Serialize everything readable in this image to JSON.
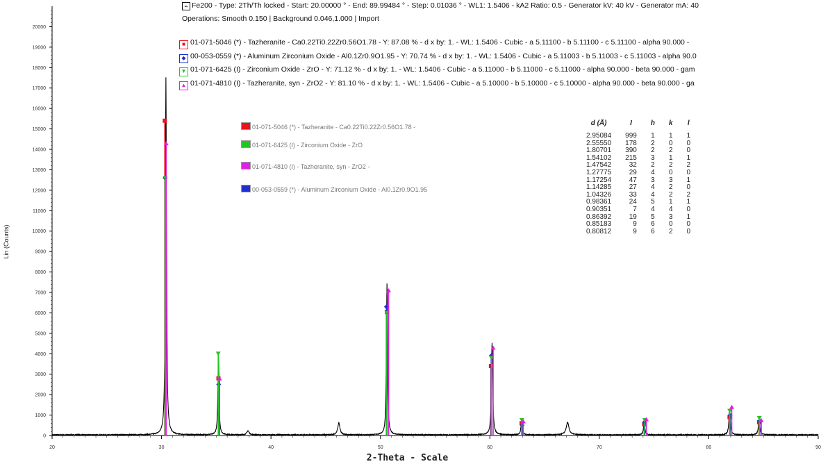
{
  "header": {
    "scan_icon": "scan-icon",
    "scan_line": "Fe200 - Type: 2Th/Th locked - Start: 20.00000 ° - End: 89.99484 ° - Step: 0.01036 ° - WL1: 1.5406 - kA2 Ratio: 0.5 - Generator kV: 40 kV - Generator mA: 40",
    "operations_line": "Operations: Smooth 0.150 | Background 0.046,1.000 | Import"
  },
  "phases": [
    {
      "symbol": "■",
      "color": "#e8141e",
      "text": "01-071-5046 (*) - Tazheranite - Ca0.22Ti0.22Zr0.56O1.78 - Y: 87.08 % - d x by: 1. - WL: 1.5406 - Cubic - a 5.11100 - b 5.11100 - c 5.11100 - alpha 90.000 -"
    },
    {
      "symbol": "◆",
      "color": "#2030d0",
      "text": "00-053-0559 (*) - Aluminum Zirconium Oxide - Al0.1Zr0.9O1.95 - Y: 70.74 % - d x by: 1. - WL: 1.5406 - Cubic - a 5.11003 - b 5.11003 - c 5.11003 - alpha 90.0"
    },
    {
      "symbol": "▼",
      "color": "#22c522",
      "text": "01-071-6425 (I) - Zirconium Oxide - ZrO - Y: 71.12 % - d x by: 1. - WL: 1.5406 - Cubic - a 5.11000 - b 5.11000 - c 5.11000 - alpha 90.000 - beta 90.000 - gam"
    },
    {
      "symbol": "▲",
      "color": "#e020e0",
      "text": "01-071-4810 (I) - Tazheranite, syn - ZrO2 - Y: 81.10 % - d x by: 1. - WL: 1.5406 - Cubic - a 5.10000 - b 5.10000 - c 5.10000 - alpha 90.000 - beta 90.000 - ga"
    }
  ],
  "legend": [
    {
      "color": "#e8141e",
      "text": "01-071-5046 (*) - Tazheranite - Ca0.22Ti0.22Zr0.56O1.78 -"
    },
    {
      "color": "#22c522",
      "text": "01-071-6425 (I) - Zirconium Oxide - ZrO"
    },
    {
      "color": "#e020e0",
      "text": "01-071-4810 (I) - Tazheranite, syn - ZrO2 -"
    },
    {
      "color": "#2030d0",
      "text": "00-053-0559 (*) - Aluminum Zirconium Oxide - Al0.1Zr0.9O1.95"
    }
  ],
  "dtable": {
    "headers": [
      "d (Å)",
      "I",
      "h",
      "k",
      "l"
    ],
    "rows": [
      [
        "2.95084",
        "999",
        "1",
        "1",
        "1"
      ],
      [
        "2.55550",
        "178",
        "2",
        "0",
        "0"
      ],
      [
        "1.80701",
        "390",
        "2",
        "2",
        "0"
      ],
      [
        "1.54102",
        "215",
        "3",
        "1",
        "1"
      ],
      [
        "1.47542",
        "32",
        "2",
        "2",
        "2"
      ],
      [
        "1.27775",
        "29",
        "4",
        "0",
        "0"
      ],
      [
        "1.17254",
        "47",
        "3",
        "3",
        "1"
      ],
      [
        "1.14285",
        "27",
        "4",
        "2",
        "0"
      ],
      [
        "1.04326",
        "33",
        "4",
        "2",
        "2"
      ],
      [
        "0.98361",
        "24",
        "5",
        "1",
        "1"
      ],
      [
        "0.90351",
        "7",
        "4",
        "4",
        "0"
      ],
      [
        "0.86392",
        "19",
        "5",
        "3",
        "1"
      ],
      [
        "0.85183",
        "9",
        "6",
        "0",
        "0"
      ],
      [
        "0.80812",
        "9",
        "6",
        "2",
        "0"
      ]
    ]
  },
  "chart_data": {
    "type": "line",
    "xlabel": "2-Theta - Scale",
    "ylabel": "Lin (Counts)",
    "xlim": [
      20,
      90
    ],
    "ylim": [
      0,
      21000
    ],
    "xticks": [
      20,
      30,
      40,
      50,
      60,
      70,
      80,
      90
    ],
    "yticks": [
      0,
      1000,
      2000,
      3000,
      4000,
      5000,
      6000,
      7000,
      8000,
      9000,
      10000,
      11000,
      12000,
      13000,
      14000,
      15000,
      16000,
      17000,
      18000,
      19000,
      20000
    ],
    "peaks": [
      {
        "x": 30.4,
        "y": 17500,
        "w": 0.06
      },
      {
        "x": 35.2,
        "y": 3900,
        "w": 0.06
      },
      {
        "x": 37.9,
        "y": 200,
        "w": 0.12
      },
      {
        "x": 46.2,
        "y": 580,
        "w": 0.12
      },
      {
        "x": 50.6,
        "y": 7400,
        "w": 0.06
      },
      {
        "x": 60.2,
        "y": 4500,
        "w": 0.07
      },
      {
        "x": 62.9,
        "y": 700,
        "w": 0.07
      },
      {
        "x": 67.1,
        "y": 600,
        "w": 0.15
      },
      {
        "x": 74.1,
        "y": 650,
        "w": 0.07
      },
      {
        "x": 81.9,
        "y": 1150,
        "w": 0.08
      },
      {
        "x": 84.6,
        "y": 750,
        "w": 0.08
      }
    ],
    "reference_sticks": [
      {
        "name": "01-071-5046 (*) - Tazheranite",
        "color": "#e8141e",
        "marker": "square",
        "points": [
          [
            30.3,
            15400
          ],
          [
            35.2,
            2800
          ],
          [
            50.6,
            6050
          ],
          [
            60.1,
            3400
          ],
          [
            62.9,
            600
          ],
          [
            74.1,
            550
          ],
          [
            81.9,
            900
          ],
          [
            84.6,
            650
          ]
        ]
      },
      {
        "name": "00-053-0559 (*) - Aluminum Zirconium Oxide",
        "color": "#2030d0",
        "marker": "diamond",
        "points": [
          [
            30.32,
            12600
          ],
          [
            35.22,
            2500
          ],
          [
            50.55,
            6300
          ],
          [
            60.12,
            3900
          ],
          [
            62.95,
            500
          ],
          [
            74.12,
            650
          ],
          [
            81.95,
            1000
          ],
          [
            84.65,
            700
          ]
        ]
      },
      {
        "name": "01-071-6425 (I) - Zirconium Oxide",
        "color": "#22c522",
        "marker": "triangle-down",
        "points": [
          [
            30.33,
            12600
          ],
          [
            35.18,
            4000
          ],
          [
            50.58,
            6000
          ],
          [
            60.15,
            3800
          ],
          [
            62.92,
            750
          ],
          [
            74.15,
            750
          ],
          [
            81.92,
            1200
          ],
          [
            84.62,
            850
          ]
        ]
      },
      {
        "name": "01-071-4810 (I) - Tazheranite, syn",
        "color": "#e020e0",
        "marker": "triangle-up",
        "points": [
          [
            30.42,
            14300
          ],
          [
            35.3,
            2800
          ],
          [
            50.75,
            7100
          ],
          [
            60.3,
            4300
          ],
          [
            63.05,
            700
          ],
          [
            74.3,
            800
          ],
          [
            82.1,
            1400
          ],
          [
            84.8,
            750
          ]
        ]
      }
    ]
  }
}
